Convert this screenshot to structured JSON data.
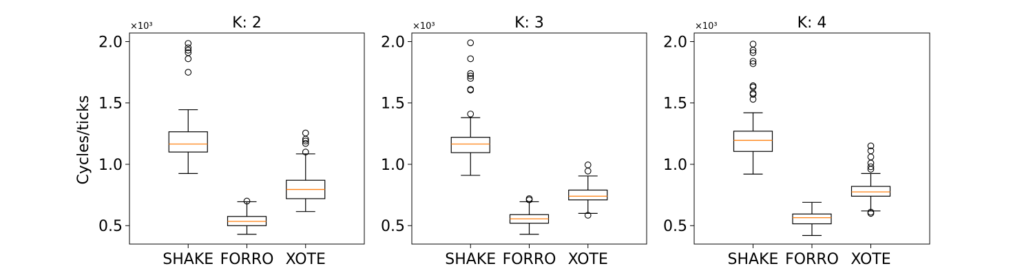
{
  "chart_data": [
    {
      "type": "box",
      "title": "K: 2",
      "ylabel": "Cycles/ticks",
      "y_multiplier": "×10³",
      "ylim": [
        0.35,
        2.07
      ],
      "yticks": [
        0.5,
        1.0,
        1.5,
        2.0
      ],
      "ytick_labels": [
        "0.5",
        "1.0",
        "1.5",
        "2.0"
      ],
      "categories": [
        "SHAKE",
        "FORRO",
        "XOTE"
      ],
      "boxes": [
        {
          "whislo": 0.925,
          "q1": 1.1,
          "med": 1.165,
          "q3": 1.265,
          "whishi": 1.445,
          "fliers": [
            1.75,
            1.86,
            1.91,
            1.93,
            1.95,
            1.985
          ]
        },
        {
          "whislo": 0.43,
          "q1": 0.5,
          "med": 0.535,
          "q3": 0.575,
          "whishi": 0.695,
          "fliers": [
            0.7
          ]
        },
        {
          "whislo": 0.615,
          "q1": 0.72,
          "med": 0.795,
          "q3": 0.87,
          "whishi": 1.085,
          "fliers": [
            1.1,
            1.17,
            1.19,
            1.205,
            1.255
          ]
        }
      ]
    },
    {
      "type": "box",
      "title": "K: 3",
      "ylabel": "",
      "y_multiplier": "×10³",
      "ylim": [
        0.35,
        2.07
      ],
      "yticks": [
        0.5,
        1.0,
        1.5,
        2.0
      ],
      "ytick_labels": [
        "0.5",
        "1.0",
        "1.5",
        "2.0"
      ],
      "categories": [
        "SHAKE",
        "FORRO",
        "XOTE"
      ],
      "boxes": [
        {
          "whislo": 0.91,
          "q1": 1.095,
          "med": 1.165,
          "q3": 1.22,
          "whishi": 1.38,
          "fliers": [
            1.41,
            1.605,
            1.61,
            1.7,
            1.72,
            1.74,
            1.86,
            1.99
          ]
        },
        {
          "whislo": 0.43,
          "q1": 0.52,
          "med": 0.555,
          "q3": 0.59,
          "whishi": 0.695,
          "fliers": [
            0.71,
            0.72
          ]
        },
        {
          "whislo": 0.6,
          "q1": 0.71,
          "med": 0.74,
          "q3": 0.79,
          "whishi": 0.905,
          "fliers": [
            0.585,
            0.945,
            0.995
          ]
        }
      ]
    },
    {
      "type": "box",
      "title": "K: 4",
      "ylabel": "",
      "y_multiplier": "×10³",
      "ylim": [
        0.35,
        2.07
      ],
      "yticks": [
        0.5,
        1.0,
        1.5,
        2.0
      ],
      "ytick_labels": [
        "0.5",
        "1.0",
        "1.5",
        "2.0"
      ],
      "categories": [
        "SHAKE",
        "FORRO",
        "XOTE"
      ],
      "boxes": [
        {
          "whislo": 0.92,
          "q1": 1.105,
          "med": 1.195,
          "q3": 1.27,
          "whishi": 1.42,
          "fliers": [
            1.53,
            1.57,
            1.58,
            1.63,
            1.64,
            1.82,
            1.84,
            1.91,
            1.93,
            1.98
          ]
        },
        {
          "whislo": 0.42,
          "q1": 0.515,
          "med": 0.565,
          "q3": 0.595,
          "whishi": 0.69,
          "fliers": []
        },
        {
          "whislo": 0.62,
          "q1": 0.74,
          "med": 0.775,
          "q3": 0.82,
          "whishi": 0.925,
          "fliers": [
            0.6,
            0.61,
            0.96,
            0.98,
            1.01,
            1.06,
            1.11,
            1.15
          ]
        }
      ]
    }
  ],
  "colors": {
    "median": "#ff7f0e",
    "box": "#000000",
    "axes": "#000000",
    "background": "#ffffff"
  }
}
